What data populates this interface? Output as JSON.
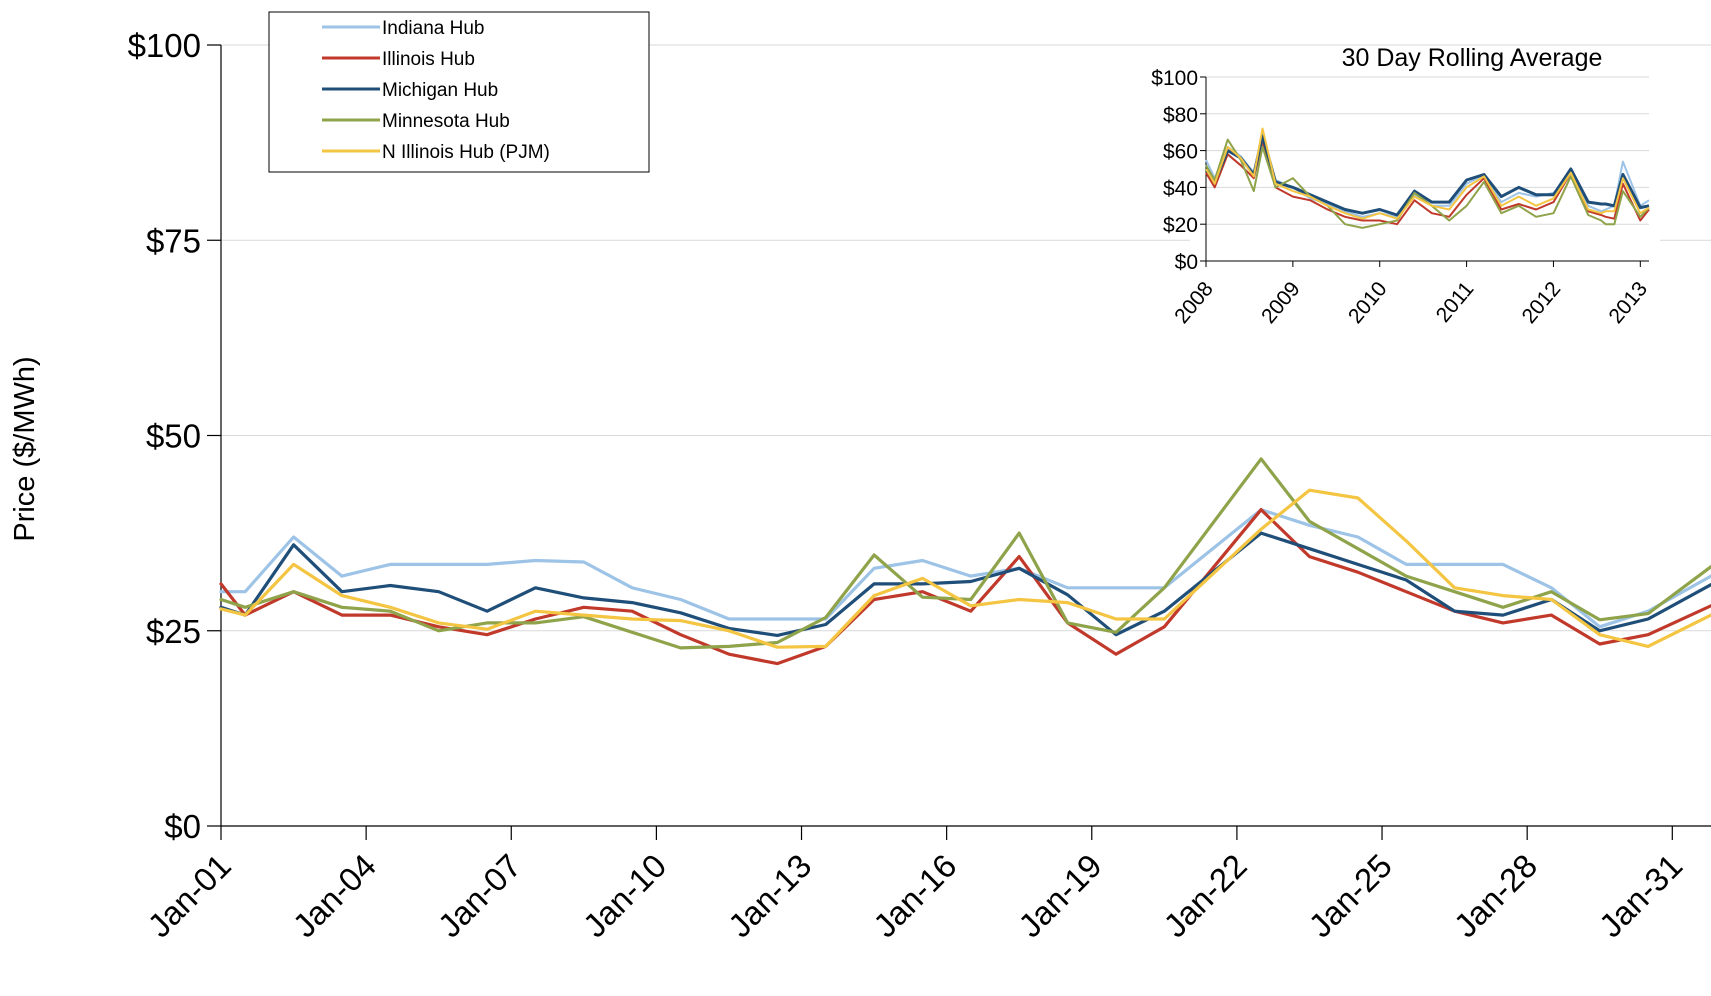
{
  "chart_data": [
    {
      "type": "line",
      "ylabel": "Price ($/MWh)",
      "y_ticks": [
        "$0",
        "$25",
        "$50",
        "$75",
        "$100"
      ],
      "y_tick_values": [
        0,
        25,
        50,
        75,
        100
      ],
      "ylim": [
        0,
        100
      ],
      "x_ticks": [
        "Jan-01",
        "Jan-04",
        "Jan-07",
        "Jan-10",
        "Jan-13",
        "Jan-16",
        "Jan-19",
        "Jan-22",
        "Jan-25",
        "Jan-28",
        "Jan-31"
      ],
      "x_tick_days": [
        1,
        4,
        7,
        10,
        13,
        16,
        19,
        22,
        25,
        28,
        31
      ],
      "xlim": [
        1,
        31.8
      ],
      "grid": "horizontal",
      "legend": "top-left",
      "series": [
        {
          "name": "Indiana Hub",
          "color": "#9dc3e6",
          "x": [
            1,
            1.5,
            2.5,
            3.5,
            4.5,
            5.5,
            6.5,
            7.5,
            8.5,
            9.5,
            10.5,
            11.5,
            12.5,
            13.5,
            14.5,
            15.5,
            16.5,
            17.5,
            18.5,
            19.5,
            20.5,
            22.5,
            23.5,
            24.5,
            25.5,
            26.5,
            27.5,
            28.5,
            29.5,
            30.5,
            31.8
          ],
          "y": [
            30,
            30,
            37,
            32,
            33.5,
            33.5,
            33.5,
            34,
            33.8,
            30.5,
            29,
            26.5,
            26.5,
            26.5,
            33,
            34,
            32,
            33,
            30.5,
            30.5,
            30.5,
            40.5,
            38.5,
            37,
            33.5,
            33.5,
            33.5,
            30.5,
            25.5,
            27.5,
            32
          ]
        },
        {
          "name": "Illinois Hub",
          "color": "#c0392b",
          "x": [
            1,
            1.5,
            2.5,
            3.5,
            4.5,
            5.5,
            6.5,
            7.5,
            8.5,
            9.5,
            10.5,
            11.5,
            12.5,
            13.5,
            14.5,
            15.5,
            16.5,
            17.5,
            18.5,
            19.5,
            20.5,
            22.5,
            23.5,
            24.5,
            25.5,
            26.5,
            27.5,
            28.5,
            29.5,
            30.5,
            31.8
          ],
          "y": [
            31,
            27,
            30,
            27,
            27,
            25.5,
            24.5,
            26.5,
            28,
            27.5,
            24.5,
            22,
            20.8,
            23,
            29,
            30,
            27.5,
            34.5,
            26,
            22,
            25.5,
            40.5,
            34.5,
            32.5,
            30,
            27.5,
            26,
            27,
            23.3,
            24.5,
            28.2
          ]
        },
        {
          "name": "Michigan Hub",
          "color": "#1f4e79",
          "x": [
            1,
            1.5,
            2.5,
            3.5,
            4.5,
            5.5,
            6.5,
            7.5,
            8.5,
            9.5,
            10.5,
            11.5,
            12.5,
            13.5,
            14.5,
            15.5,
            16.5,
            17.5,
            18.5,
            19.5,
            20.5,
            22.5,
            23.5,
            24.5,
            25.5,
            26.5,
            27.5,
            28.5,
            29.5,
            30.5,
            31.8
          ],
          "y": [
            28,
            27,
            36,
            30,
            30.8,
            30,
            27.5,
            30.5,
            29.2,
            28.6,
            27.3,
            25.3,
            24.4,
            25.8,
            31,
            31,
            31.3,
            33,
            29.6,
            24.5,
            27.5,
            37.5,
            35.5,
            33.5,
            31.5,
            27.5,
            27,
            29,
            25,
            26.5,
            30.9
          ]
        },
        {
          "name": "Minnesota Hub",
          "color": "#8fa34a",
          "x": [
            1,
            1.5,
            2.5,
            3.5,
            4.5,
            5.5,
            6.5,
            7.5,
            8.5,
            9.5,
            10.5,
            11.5,
            12.5,
            13.5,
            14.5,
            15.5,
            16.5,
            17.5,
            18.5,
            19.5,
            20.5,
            22.5,
            23.5,
            24.5,
            25.5,
            26.5,
            27.5,
            28.5,
            29.5,
            30.5,
            31.8
          ],
          "y": [
            29,
            28,
            30,
            28,
            27.5,
            25,
            26,
            26,
            26.8,
            24.8,
            22.8,
            23,
            23.5,
            26.7,
            34.7,
            29.3,
            29,
            37.5,
            26,
            24.8,
            30.5,
            47,
            39,
            35.5,
            32,
            30,
            28,
            30,
            26.4,
            27.2,
            33.2
          ]
        },
        {
          "name": "N Illinois Hub (PJM)",
          "color": "#f4c542",
          "x": [
            1,
            1.5,
            2.5,
            3.5,
            4.5,
            5.5,
            6.5,
            7.5,
            8.5,
            9.5,
            10.5,
            11.5,
            12.5,
            13.5,
            14.5,
            15.5,
            16.5,
            17.5,
            18.5,
            19.5,
            20.5,
            22.5,
            23.5,
            24.5,
            25.5,
            26.5,
            27.5,
            28.5,
            29.5,
            30.5,
            31.8
          ],
          "y": [
            27.8,
            27,
            33.5,
            29.5,
            28,
            26,
            25.2,
            27.5,
            27,
            26.5,
            26.3,
            25,
            22.9,
            23,
            29.5,
            31.7,
            28.2,
            29,
            28.6,
            26.5,
            26.5,
            38,
            43,
            42,
            36.5,
            30.5,
            29.5,
            29,
            24.5,
            23,
            27
          ]
        }
      ]
    },
    {
      "type": "line",
      "title": "30 Day Rolling Average",
      "y_ticks": [
        "$0",
        "$20",
        "$40",
        "$60",
        "$80",
        "$100"
      ],
      "y_tick_values": [
        0,
        20,
        40,
        60,
        80,
        100
      ],
      "ylim": [
        0,
        100
      ],
      "x_ticks": [
        "2008",
        "2009",
        "2010",
        "2011",
        "2012",
        "2013"
      ],
      "x_tick_values": [
        2008,
        2009,
        2010,
        2011,
        2012,
        2013
      ],
      "xlim": [
        2008,
        2013.1
      ],
      "grid": "horizontal",
      "series": [
        {
          "color": "#9dc3e6",
          "x": [
            2008,
            2008.1,
            2008.25,
            2008.4,
            2008.55,
            2008.65,
            2008.8,
            2009,
            2009.2,
            2009.4,
            2009.6,
            2009.8,
            2010,
            2010.2,
            2010.4,
            2010.6,
            2010.8,
            2011,
            2011.2,
            2011.4,
            2011.6,
            2011.8,
            2012,
            2012.2,
            2012.4,
            2012.55,
            2012.6,
            2012.7,
            2012.8,
            2013,
            2013.1
          ],
          "y": [
            55,
            45,
            62,
            57,
            48,
            70,
            44,
            40,
            34,
            31,
            27,
            24,
            26,
            24,
            36,
            30,
            30,
            42,
            47,
            32,
            37,
            35,
            37,
            46,
            30,
            27,
            28,
            30,
            54,
            30,
            33
          ]
        },
        {
          "color": "#c0392b",
          "x": [
            2008,
            2008.1,
            2008.25,
            2008.4,
            2008.55,
            2008.65,
            2008.8,
            2009,
            2009.2,
            2009.4,
            2009.6,
            2009.8,
            2010,
            2010.2,
            2010.4,
            2010.6,
            2010.8,
            2011,
            2011.2,
            2011.4,
            2011.6,
            2011.8,
            2012,
            2012.2,
            2012.4,
            2012.55,
            2012.6,
            2012.7,
            2012.8,
            2013,
            2013.1
          ],
          "y": [
            48,
            40,
            58,
            52,
            45,
            65,
            40,
            35,
            33,
            28,
            24,
            22,
            22,
            20,
            33,
            26,
            24,
            36,
            45,
            28,
            31,
            28,
            32,
            48,
            27,
            25,
            24,
            23,
            42,
            22,
            28
          ]
        },
        {
          "color": "#1f4e79",
          "x": [
            2008,
            2008.1,
            2008.25,
            2008.4,
            2008.55,
            2008.65,
            2008.8,
            2009,
            2009.2,
            2009.4,
            2009.6,
            2009.8,
            2010,
            2010.2,
            2010.4,
            2010.6,
            2010.8,
            2011,
            2011.2,
            2011.4,
            2011.6,
            2011.8,
            2012,
            2012.2,
            2012.4,
            2012.55,
            2012.6,
            2012.7,
            2012.8,
            2013,
            2013.1
          ],
          "y": [
            50,
            43,
            60,
            56,
            47,
            68,
            43,
            40,
            36,
            32,
            28,
            26,
            28,
            25,
            38,
            32,
            32,
            44,
            47,
            35,
            40,
            36,
            36,
            50,
            32,
            31,
            31,
            30,
            47,
            29,
            30
          ]
        },
        {
          "color": "#8fa34a",
          "x": [
            2008,
            2008.1,
            2008.25,
            2008.4,
            2008.55,
            2008.65,
            2008.8,
            2009,
            2009.2,
            2009.4,
            2009.6,
            2009.8,
            2010,
            2010.2,
            2010.4,
            2010.6,
            2010.8,
            2011,
            2011.2,
            2011.4,
            2011.6,
            2011.8,
            2012,
            2012.2,
            2012.4,
            2012.55,
            2012.6,
            2012.7,
            2012.8,
            2013,
            2013.1
          ],
          "y": [
            52,
            44,
            66,
            55,
            38,
            62,
            40,
            45,
            35,
            30,
            20,
            18,
            20,
            22,
            37,
            30,
            22,
            30,
            43,
            26,
            30,
            24,
            26,
            46,
            25,
            22,
            20,
            20,
            38,
            24,
            29
          ]
        },
        {
          "color": "#f4c542",
          "x": [
            2008,
            2008.1,
            2008.25,
            2008.4,
            2008.55,
            2008.65,
            2008.8,
            2009,
            2009.2,
            2009.4,
            2009.6,
            2009.8,
            2010,
            2010.2,
            2010.4,
            2010.6,
            2010.8,
            2011,
            2011.2,
            2011.4,
            2011.6,
            2011.8,
            2012,
            2012.2,
            2012.4,
            2012.55,
            2012.6,
            2012.7,
            2012.8,
            2013,
            2013.1
          ],
          "y": [
            50,
            42,
            62,
            56,
            46,
            72,
            42,
            38,
            35,
            30,
            26,
            23,
            26,
            23,
            35,
            30,
            28,
            40,
            46,
            30,
            35,
            30,
            34,
            48,
            28,
            26,
            27,
            27,
            45,
            26,
            29
          ]
        }
      ]
    }
  ]
}
